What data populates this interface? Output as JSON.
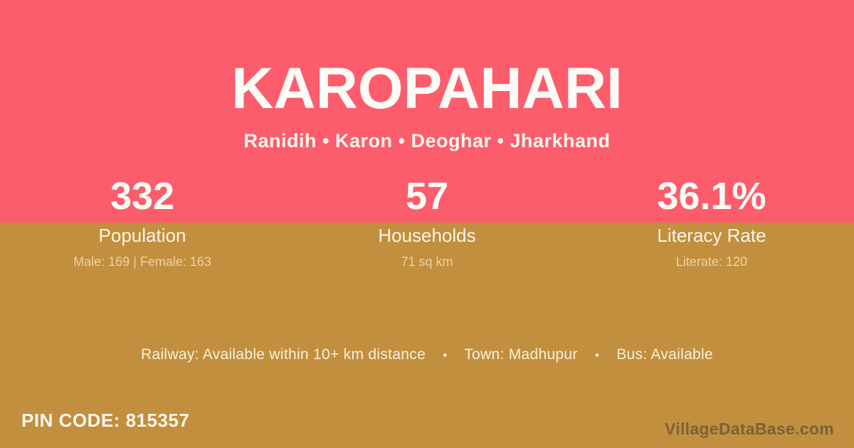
{
  "header": {
    "title": "KAROPAHARI",
    "subtitle": "Ranidih • Karon • Deoghar • Jharkhand"
  },
  "stats": [
    {
      "value": "332",
      "label": "Population",
      "detail": "Male: 169 | Female: 163"
    },
    {
      "value": "57",
      "label": "Households",
      "detail": "71 sq km"
    },
    {
      "value": "36.1%",
      "label": "Literacy Rate",
      "detail": "Literate: 120"
    }
  ],
  "facilities": {
    "items": [
      "Railway: Available within 10+ km distance",
      "Town: Madhupur",
      "Bus: Available"
    ],
    "separator": "•"
  },
  "footer": {
    "pin_code": "PIN CODE: 815357",
    "watermark": "VillageDataBase.com"
  },
  "colors": {
    "top_background": "#FC5D6C",
    "bottom_background": "#C18F3E",
    "primary_text": "#FDFBF6",
    "detail_text": "#EDD2A4",
    "watermark_text": "rgba(58,58,58,0.52)"
  }
}
